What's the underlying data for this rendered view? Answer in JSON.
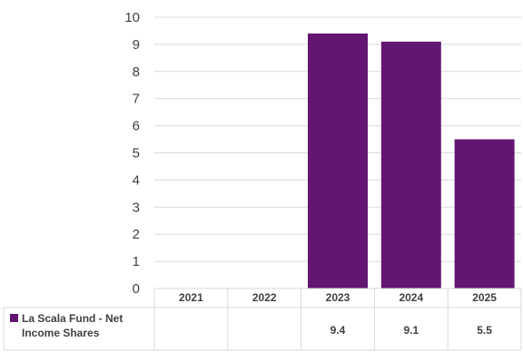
{
  "chart_data": {
    "type": "bar",
    "categories": [
      "2021",
      "2022",
      "2023",
      "2024",
      "2025"
    ],
    "series": [
      {
        "name": "La Scala Fund - Net Income Shares",
        "name_lines": [
          "La Scala Fund - Net",
          "Income Shares"
        ],
        "values": [
          null,
          null,
          9.4,
          9.1,
          5.5
        ],
        "value_labels": [
          "",
          "",
          "9.4",
          "9.1",
          "5.5"
        ],
        "color": "#621671"
      }
    ],
    "ylim": [
      0,
      10
    ],
    "yticks": [
      "0",
      "1",
      "2",
      "3",
      "4",
      "5",
      "6",
      "7",
      "8",
      "9",
      "10"
    ],
    "grid": true,
    "legend_position": "data-table-left",
    "title": "",
    "xlabel": "",
    "ylabel": ""
  }
}
